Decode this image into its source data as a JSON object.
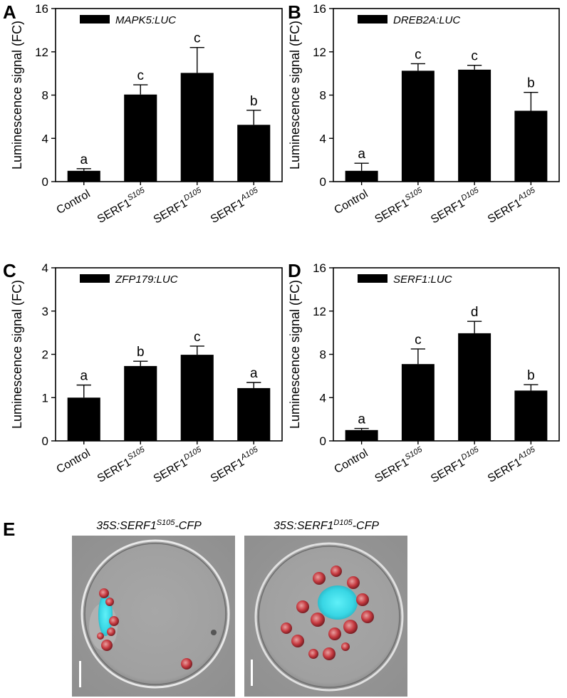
{
  "chart_data": [
    {
      "panel": "A",
      "type": "bar",
      "legend": "MAPK5:LUC",
      "ylabel": "Luminescence signal (FC)",
      "categories": [
        "Control",
        "SERF1",
        "SERF1",
        "SERF1"
      ],
      "category_superscripts": [
        "",
        "S105",
        "D105",
        "A105"
      ],
      "values": [
        1.0,
        8.05,
        10.05,
        5.25
      ],
      "errors": [
        0.2,
        0.9,
        2.35,
        1.35
      ],
      "significance": [
        "a",
        "c",
        "c",
        "b"
      ],
      "ylim": [
        0,
        16
      ],
      "yticks": [
        0,
        4,
        8,
        12,
        16
      ]
    },
    {
      "panel": "B",
      "type": "bar",
      "legend": "DREB2A:LUC",
      "ylabel": "Luminescence signal (FC)",
      "categories": [
        "Control",
        "SERF1",
        "SERF1",
        "SERF1"
      ],
      "category_superscripts": [
        "",
        "S105",
        "D105",
        "A105"
      ],
      "values": [
        1.0,
        10.25,
        10.35,
        6.55
      ],
      "errors": [
        0.7,
        0.65,
        0.4,
        1.7
      ],
      "significance": [
        "a",
        "c",
        "c",
        "b"
      ],
      "ylim": [
        0,
        16
      ],
      "yticks": [
        0,
        4,
        8,
        12,
        16
      ]
    },
    {
      "panel": "C",
      "type": "bar",
      "legend": "ZFP179:LUC",
      "ylabel": "Luminescence signal (FC)",
      "categories": [
        "Control",
        "SERF1",
        "SERF1",
        "SERF1"
      ],
      "category_superscripts": [
        "",
        "S105",
        "D105",
        "A105"
      ],
      "values": [
        1.0,
        1.73,
        1.99,
        1.22
      ],
      "errors": [
        0.29,
        0.11,
        0.2,
        0.13
      ],
      "significance": [
        "a",
        "b",
        "c",
        "a"
      ],
      "ylim": [
        0,
        4
      ],
      "yticks": [
        0,
        1,
        2,
        3,
        4
      ]
    },
    {
      "panel": "D",
      "type": "bar",
      "legend": "SERF1:LUC",
      "ylabel": "Luminescence signal (FC)",
      "categories": [
        "Control",
        "SERF1",
        "SERF1",
        "SERF1"
      ],
      "category_superscripts": [
        "",
        "S105",
        "D105",
        "A105"
      ],
      "values": [
        1.0,
        7.1,
        9.95,
        4.65
      ],
      "errors": [
        0.15,
        1.4,
        1.1,
        0.55
      ],
      "significance": [
        "a",
        "c",
        "d",
        "b"
      ],
      "ylim": [
        0,
        16
      ],
      "yticks": [
        0,
        4,
        8,
        12,
        16
      ]
    }
  ],
  "panel_e": {
    "letter": "E",
    "images": [
      {
        "title_prefix": "35S:SERF1",
        "title_sup": "S105",
        "title_suffix": "-CFP"
      },
      {
        "title_prefix": "35S:SERF1",
        "title_sup": "D105",
        "title_suffix": "-CFP"
      }
    ]
  },
  "colors": {
    "bar": "#000000",
    "axis": "#000000",
    "micrograph_bg": "#9a9a9a",
    "chloroplast": "#c8343c",
    "nucleus_cfp": "#37d8e6"
  }
}
